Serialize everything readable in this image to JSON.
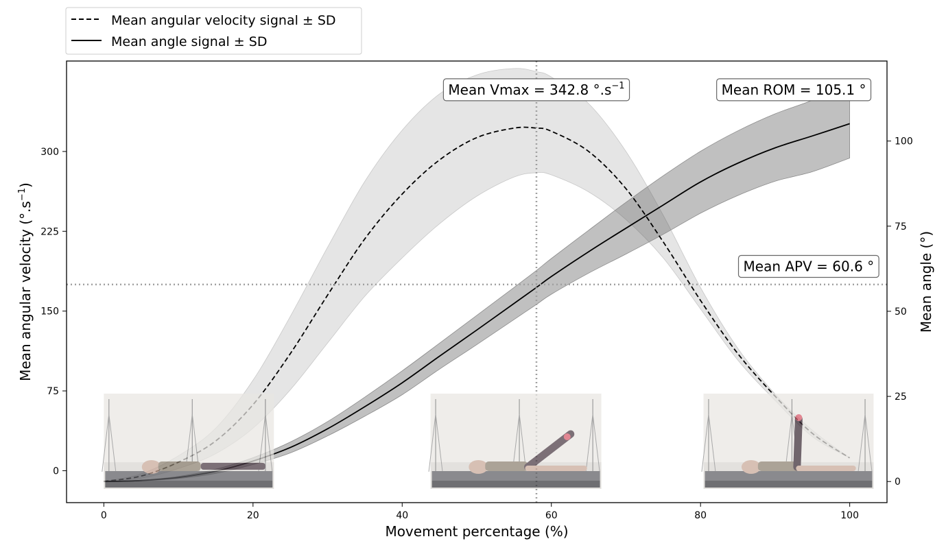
{
  "chart_data": {
    "type": "line",
    "xlabel": "Movement percentage (%)",
    "ylabel_left": "Mean angular velocity (°.s⁻¹)",
    "ylabel_left_main": "Mean angular velocity (°.s",
    "ylabel_left_sup": "−1",
    "ylabel_left_close": ")",
    "ylabel_right": "Mean angle (°)",
    "xlim": [
      -5,
      105
    ],
    "ylim_left": [
      -30,
      385
    ],
    "ylim_right": [
      -6.2,
      123.5
    ],
    "xticks": [
      0,
      20,
      40,
      60,
      80,
      100
    ],
    "yticks_left": [
      0,
      75,
      150,
      225,
      300
    ],
    "yticks_right": [
      0,
      25,
      50,
      75,
      100
    ],
    "grid": false,
    "legend_position": "above-top-left",
    "legend": [
      {
        "label": "Mean angular velocity signal ± SD",
        "style": "dashed"
      },
      {
        "label": "Mean angle signal ± SD",
        "style": "solid"
      }
    ],
    "series": [
      {
        "name": "Mean angular velocity signal ± SD",
        "axis": "left",
        "style": "dashed",
        "x": [
          0,
          5,
          10,
          15,
          20,
          25,
          30,
          35,
          40,
          45,
          50,
          55,
          58,
          60,
          65,
          70,
          75,
          80,
          85,
          90,
          95,
          100
        ],
        "mean": [
          -10,
          -5,
          8,
          28,
          62,
          110,
          165,
          218,
          260,
          292,
          313,
          322,
          322,
          319,
          300,
          265,
          215,
          160,
          110,
          70,
          35,
          12
        ],
        "upper": [
          -10,
          -3,
          14,
          40,
          85,
          145,
          210,
          272,
          320,
          354,
          372,
          378,
          375,
          370,
          345,
          300,
          240,
          172,
          115,
          72,
          38,
          12
        ],
        "lower": [
          -10,
          -7,
          2,
          16,
          40,
          76,
          120,
          164,
          200,
          232,
          258,
          276,
          280,
          278,
          262,
          236,
          200,
          152,
          104,
          66,
          32,
          12
        ]
      },
      {
        "name": "Mean angle signal ± SD",
        "axis": "right",
        "style": "solid",
        "x": [
          0,
          5,
          10,
          15,
          20,
          25,
          30,
          35,
          40,
          45,
          50,
          55,
          58,
          60,
          65,
          70,
          75,
          80,
          85,
          90,
          95,
          100
        ],
        "mean": [
          0,
          0.3,
          1.2,
          3,
          6,
          10,
          15.5,
          22,
          29,
          36.8,
          44.5,
          52.3,
          57,
          60.2,
          67.5,
          74.4,
          81.2,
          88,
          93.5,
          98,
          101.5,
          105.1
        ],
        "upper": [
          0,
          0.4,
          1.5,
          3.6,
          7,
          11.6,
          17.6,
          24.8,
          32.5,
          40.6,
          48.8,
          57,
          62,
          65.5,
          73.8,
          82,
          89.8,
          97,
          103,
          108,
          112,
          117
        ],
        "lower": [
          0,
          0.2,
          0.9,
          2.4,
          5,
          8.4,
          13.4,
          19.2,
          25.5,
          33,
          40.2,
          47.6,
          52,
          55,
          61.2,
          66.8,
          72.6,
          78.8,
          84,
          88.2,
          91,
          95
        ]
      }
    ],
    "reference_lines": {
      "vertical_x": 58,
      "horizontal_y_left": 175
    },
    "annotations": [
      {
        "main": "Mean Vmax = 342.8 °.s",
        "sup": "−1",
        "x": 58,
        "y_left": 358
      },
      {
        "main": "Mean ROM = 105.1 °",
        "sup": "",
        "x": 92.5,
        "y_left": 358
      },
      {
        "main": "Mean APV = 60.6 °",
        "sup": "",
        "x": 94.5,
        "y_left": 192
      }
    ],
    "inset_photos": [
      {
        "x_from": 0,
        "x_to": 22.8,
        "pose": "flat"
      },
      {
        "x_from": 43.8,
        "x_to": 66.7,
        "pose": "mid"
      },
      {
        "x_from": 80.4,
        "x_to": 103.2,
        "pose": "raised"
      }
    ]
  }
}
